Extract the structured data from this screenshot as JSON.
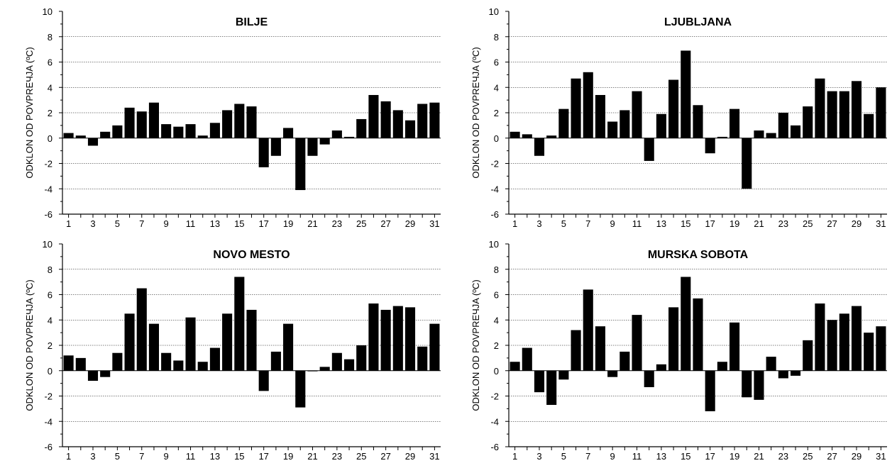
{
  "chart_data": [
    {
      "type": "bar",
      "title": "BILJE",
      "ylabel": "ODKLON OD POVPREЧJA (ºC)",
      "xlabel": "",
      "ylim": [
        -6,
        10
      ],
      "yticks": [
        "10",
        "8",
        "6",
        "4",
        "2",
        "0",
        "-2",
        "-4",
        "-6"
      ],
      "xtick_labels": [
        "1",
        "3",
        "5",
        "7",
        "9",
        "11",
        "13",
        "15",
        "17",
        "19",
        "21",
        "23",
        "25",
        "27",
        "29",
        "31"
      ],
      "categories": [
        "1",
        "2",
        "3",
        "4",
        "5",
        "6",
        "7",
        "8",
        "9",
        "10",
        "11",
        "12",
        "13",
        "14",
        "15",
        "16",
        "17",
        "18",
        "19",
        "20",
        "21",
        "22",
        "23",
        "24",
        "25",
        "26",
        "27",
        "28",
        "29",
        "30",
        "31"
      ],
      "values": [
        0.4,
        0.2,
        -0.6,
        0.5,
        1.0,
        2.4,
        2.1,
        2.8,
        1.1,
        0.9,
        1.1,
        0.2,
        1.2,
        2.2,
        2.7,
        2.5,
        -2.3,
        -1.4,
        0.8,
        -4.1,
        -1.4,
        -0.5,
        0.6,
        0.1,
        1.5,
        3.4,
        2.9,
        2.2,
        1.4,
        2.7,
        2.8
      ],
      "grid": true
    },
    {
      "type": "bar",
      "title": "LJUBLJANA",
      "ylabel": "ODKLON OD POVPREЧJA (ºC)",
      "xlabel": "",
      "ylim": [
        -6,
        10
      ],
      "yticks": [
        "10",
        "8",
        "6",
        "4",
        "2",
        "0",
        "-2",
        "-4",
        "-6"
      ],
      "xtick_labels": [
        "1",
        "3",
        "5",
        "7",
        "9",
        "11",
        "13",
        "15",
        "17",
        "19",
        "21",
        "23",
        "25",
        "27",
        "29",
        "31"
      ],
      "categories": [
        "1",
        "2",
        "3",
        "4",
        "5",
        "6",
        "7",
        "8",
        "9",
        "10",
        "11",
        "12",
        "13",
        "14",
        "15",
        "16",
        "17",
        "18",
        "19",
        "20",
        "21",
        "22",
        "23",
        "24",
        "25",
        "26",
        "27",
        "28",
        "29",
        "30",
        "31"
      ],
      "values": [
        0.5,
        0.3,
        -1.4,
        0.2,
        2.3,
        4.7,
        5.2,
        3.4,
        1.3,
        2.2,
        3.7,
        -1.8,
        1.9,
        4.6,
        6.9,
        2.6,
        -1.2,
        0.1,
        2.3,
        -4.0,
        0.6,
        0.4,
        2.0,
        1.0,
        2.5,
        4.7,
        3.7,
        3.7,
        4.5,
        1.9,
        4.0
      ],
      "grid": true
    },
    {
      "type": "bar",
      "title": "NOVO MESTO",
      "ylabel": "ODKLON OD POVPREЧJA (ºC)",
      "xlabel": "",
      "ylim": [
        -6,
        10
      ],
      "yticks": [
        "10",
        "8",
        "6",
        "4",
        "2",
        "0",
        "-2",
        "-4",
        "-6"
      ],
      "xtick_labels": [
        "1",
        "3",
        "5",
        "7",
        "9",
        "11",
        "13",
        "15",
        "17",
        "19",
        "21",
        "23",
        "25",
        "27",
        "29",
        "31"
      ],
      "categories": [
        "1",
        "2",
        "3",
        "4",
        "5",
        "6",
        "7",
        "8",
        "9",
        "10",
        "11",
        "12",
        "13",
        "14",
        "15",
        "16",
        "17",
        "18",
        "19",
        "20",
        "21",
        "22",
        "23",
        "24",
        "25",
        "26",
        "27",
        "28",
        "29",
        "30",
        "31"
      ],
      "values": [
        1.2,
        1.0,
        -0.8,
        -0.5,
        1.4,
        4.5,
        6.5,
        3.7,
        1.4,
        0.8,
        4.2,
        0.7,
        1.8,
        4.5,
        7.4,
        4.8,
        -1.6,
        1.5,
        3.7,
        -2.9,
        -0.05,
        0.3,
        1.4,
        0.9,
        2.0,
        5.3,
        4.8,
        5.1,
        5.0,
        1.9,
        3.7
      ],
      "grid": true
    },
    {
      "type": "bar",
      "title": "MURSKA SOBOTA",
      "ylabel": "ODKLON OD POVPREЧJA (ºC)",
      "xlabel": "",
      "ylim": [
        -6,
        10
      ],
      "yticks": [
        "10",
        "8",
        "6",
        "4",
        "2",
        "0",
        "-2",
        "-4",
        "-6"
      ],
      "xtick_labels": [
        "1",
        "3",
        "5",
        "7",
        "9",
        "11",
        "13",
        "15",
        "17",
        "19",
        "21",
        "23",
        "25",
        "27",
        "29",
        "31"
      ],
      "categories": [
        "1",
        "2",
        "3",
        "4",
        "5",
        "6",
        "7",
        "8",
        "9",
        "10",
        "11",
        "12",
        "13",
        "14",
        "15",
        "16",
        "17",
        "18",
        "19",
        "20",
        "21",
        "22",
        "23",
        "24",
        "25",
        "26",
        "27",
        "28",
        "29",
        "30",
        "31"
      ],
      "values": [
        0.7,
        1.8,
        -1.7,
        -2.7,
        -0.7,
        3.2,
        6.4,
        3.5,
        -0.5,
        1.5,
        4.4,
        -1.3,
        0.5,
        5.0,
        7.4,
        5.7,
        -3.2,
        0.7,
        3.8,
        -2.1,
        -2.3,
        1.1,
        -0.6,
        -0.4,
        2.4,
        5.3,
        4.0,
        4.5,
        5.1,
        3.0,
        3.5
      ],
      "grid": true
    }
  ],
  "colors": {
    "bar": "#000000",
    "grid": "#000000",
    "background": "#ffffff"
  }
}
